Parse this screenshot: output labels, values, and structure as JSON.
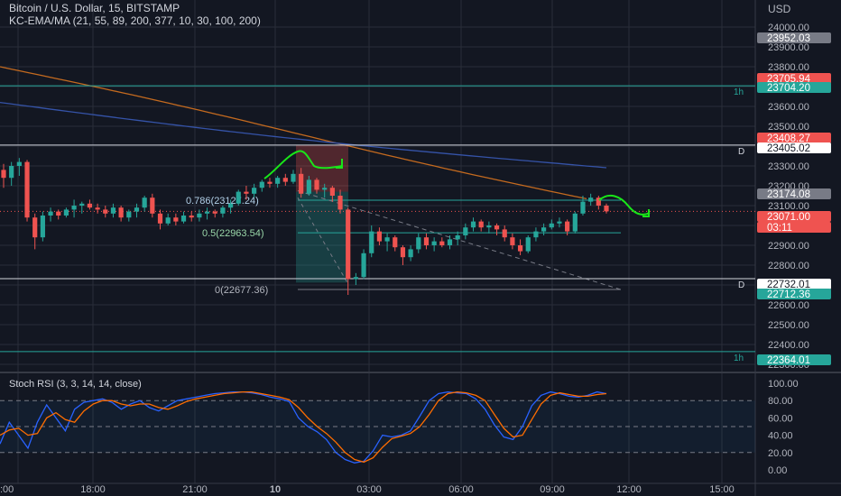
{
  "header": {
    "title": "Bitcoin / U.S. Dollar, 15, BITSTAMP",
    "indicator": "KC-EMA/MA (21, 55, 89, 200, 377, 10, 30, 100, 200)",
    "currency": "USD"
  },
  "stoch_label": "Stoch RSI (3, 3, 14, 14, close)",
  "colors": {
    "bg": "#131722",
    "up": "#26a69a",
    "down": "#ef5350",
    "grid": "#2a2e39",
    "ma_orange": "#c46a1f",
    "ma_blue": "#3553a8",
    "k": "#2962ff",
    "d": "#ff6d00",
    "hand": "#19e619"
  },
  "price_scale": {
    "labels": [
      "24000.00",
      "23900.00",
      "23800.00",
      "23700.00",
      "23600.00",
      "23500.00",
      "23400.00",
      "23300.00",
      "23200.00",
      "23100.00",
      "23000.00",
      "22900.00",
      "22800.00",
      "22700.00",
      "22600.00",
      "22500.00",
      "22400.00",
      "22300.00"
    ],
    "badges": [
      {
        "text": "23952.03",
        "bg": "#787b86",
        "fg": "#ffffff"
      },
      {
        "text": "23705.94",
        "bg": "#ef5350",
        "fg": "#ffffff"
      },
      {
        "text": "23704.20",
        "bg": "#26a69a",
        "fg": "#ffffff"
      },
      {
        "text": "23408.27",
        "bg": "#ef5350",
        "fg": "#ffffff"
      },
      {
        "text": "23405.02",
        "bg": "#ffffff",
        "fg": "#131722"
      },
      {
        "text": "23174.08",
        "bg": "#787b86",
        "fg": "#ffffff"
      },
      {
        "text": "23071.00",
        "bg": "#ef5350",
        "fg": "#ffffff"
      },
      {
        "text": "03:11",
        "bg": "#ef5350",
        "fg": "#ffffff"
      },
      {
        "text": "22732.01",
        "bg": "#ffffff",
        "fg": "#131722"
      },
      {
        "text": "22712.36",
        "bg": "#26a69a",
        "fg": "#ffffff"
      },
      {
        "text": "22364.01",
        "bg": "#26a69a",
        "fg": "#ffffff"
      }
    ]
  },
  "stoch_scale": [
    "100.00",
    "80.00",
    "60.00",
    "40.00",
    "20.00",
    "0.00"
  ],
  "time_axis": [
    ":00",
    "18:00",
    "21:00",
    "10",
    "03:00",
    "06:00",
    "09:00",
    "12:00",
    "15:00"
  ],
  "levels": [
    {
      "price": 23704.2,
      "label": "1h",
      "color": "#26a69a"
    },
    {
      "price": 23405.02,
      "label": "D",
      "color": "#d1d4dc"
    },
    {
      "price": 22732.01,
      "label": "D",
      "color": "#d1d4dc"
    },
    {
      "price": 22364.01,
      "label": "1h",
      "color": "#26a69a"
    }
  ],
  "fib_labels": [
    "0.786(23127.24)",
    "0.5(22963.54)",
    "0(22677.36)"
  ],
  "chart_data": {
    "type": "candlestick",
    "title": "Bitcoin / U.S. Dollar, 15, BITSTAMP",
    "ylim": [
      22200,
      24060
    ],
    "timeframe": "15",
    "last_price": 23071.0,
    "ohlc": [
      [
        23280,
        23310,
        23190,
        23240
      ],
      [
        23240,
        23320,
        23200,
        23300
      ],
      [
        23300,
        23340,
        23250,
        23320
      ],
      [
        23320,
        23330,
        23020,
        23040
      ],
      [
        23040,
        23060,
        22880,
        22940
      ],
      [
        22940,
        23070,
        22920,
        23050
      ],
      [
        23050,
        23090,
        23020,
        23070
      ],
      [
        23070,
        23080,
        23030,
        23050
      ],
      [
        23050,
        23090,
        23040,
        23080
      ],
      [
        23080,
        23130,
        23040,
        23100
      ],
      [
        23100,
        23120,
        23060,
        23110
      ],
      [
        23110,
        23130,
        23080,
        23090
      ],
      [
        23090,
        23110,
        23060,
        23080
      ],
      [
        23080,
        23100,
        23040,
        23060
      ],
      [
        23060,
        23110,
        23040,
        23090
      ],
      [
        23090,
        23100,
        23020,
        23040
      ],
      [
        23040,
        23080,
        23020,
        23070
      ],
      [
        23070,
        23110,
        23040,
        23090
      ],
      [
        23090,
        23150,
        23070,
        23140
      ],
      [
        23140,
        23160,
        23040,
        23060
      ],
      [
        23060,
        23080,
        22980,
        23010
      ],
      [
        23010,
        23060,
        23000,
        23040
      ],
      [
        23040,
        23060,
        23000,
        23020
      ],
      [
        23020,
        23070,
        23010,
        23050
      ],
      [
        23050,
        23070,
        23020,
        23040
      ],
      [
        23040,
        23080,
        23020,
        23060
      ],
      [
        23060,
        23090,
        23030,
        23070
      ],
      [
        23070,
        23080,
        23040,
        23060
      ],
      [
        23060,
        23100,
        23040,
        23090
      ],
      [
        23090,
        23130,
        23060,
        23110
      ],
      [
        23110,
        23180,
        23100,
        23170
      ],
      [
        23170,
        23200,
        23130,
        23160
      ],
      [
        23160,
        23210,
        23140,
        23190
      ],
      [
        23190,
        23230,
        23170,
        23220
      ],
      [
        23220,
        23240,
        23190,
        23210
      ],
      [
        23210,
        23250,
        23190,
        23240
      ],
      [
        23240,
        23260,
        23200,
        23220
      ],
      [
        23220,
        23280,
        23210,
        23260
      ],
      [
        23260,
        23290,
        23140,
        23160
      ],
      [
        23160,
        23250,
        23150,
        23230
      ],
      [
        23230,
        23240,
        23160,
        23180
      ],
      [
        23180,
        23210,
        23140,
        23190
      ],
      [
        23190,
        23200,
        23120,
        23150
      ],
      [
        23150,
        23180,
        23060,
        23080
      ],
      [
        23080,
        23090,
        22650,
        22730
      ],
      [
        22730,
        22760,
        22700,
        22740
      ],
      [
        22740,
        22880,
        22730,
        22860
      ],
      [
        22860,
        23000,
        22840,
        22970
      ],
      [
        22970,
        22990,
        22900,
        22920
      ],
      [
        22920,
        22960,
        22870,
        22940
      ],
      [
        22940,
        22950,
        22870,
        22890
      ],
      [
        22890,
        22900,
        22800,
        22840
      ],
      [
        22840,
        22900,
        22820,
        22880
      ],
      [
        22880,
        22960,
        22860,
        22940
      ],
      [
        22940,
        22960,
        22880,
        22900
      ],
      [
        22900,
        22940,
        22870,
        22920
      ],
      [
        22920,
        22940,
        22890,
        22900
      ],
      [
        22900,
        22950,
        22880,
        22930
      ],
      [
        22930,
        22970,
        22900,
        22950
      ],
      [
        22950,
        23010,
        22930,
        22990
      ],
      [
        22990,
        23040,
        22970,
        23020
      ],
      [
        23020,
        23030,
        22970,
        22990
      ],
      [
        22990,
        23020,
        22960,
        23000
      ],
      [
        23000,
        23010,
        22950,
        22980
      ],
      [
        22980,
        23000,
        22920,
        22940
      ],
      [
        22940,
        22960,
        22880,
        22900
      ],
      [
        22900,
        22930,
        22850,
        22870
      ],
      [
        22870,
        22950,
        22860,
        22940
      ],
      [
        22940,
        22990,
        22920,
        22970
      ],
      [
        22970,
        23010,
        22950,
        22990
      ],
      [
        22990,
        23030,
        22980,
        23010
      ],
      [
        23010,
        23040,
        22990,
        23020
      ],
      [
        23020,
        23030,
        22950,
        22970
      ],
      [
        22970,
        23070,
        22960,
        23060
      ],
      [
        23060,
        23150,
        23050,
        23120
      ],
      [
        23120,
        23160,
        23100,
        23140
      ],
      [
        23140,
        23150,
        23080,
        23100
      ],
      [
        23100,
        23110,
        23060,
        23071
      ]
    ],
    "stoch_k": [
      30,
      55,
      40,
      25,
      55,
      75,
      60,
      45,
      70,
      78,
      80,
      82,
      78,
      70,
      76,
      80,
      72,
      68,
      74,
      80,
      82,
      84,
      86,
      88,
      89,
      90,
      90,
      89,
      87,
      84,
      82,
      79,
      60,
      50,
      44,
      35,
      20,
      12,
      8,
      10,
      22,
      40,
      38,
      40,
      45,
      62,
      80,
      88,
      90,
      89,
      88,
      82,
      70,
      52,
      38,
      35,
      50,
      74,
      86,
      90,
      88,
      85,
      84,
      86,
      90,
      88
    ],
    "stoch_d": [
      40,
      46,
      48,
      40,
      42,
      60,
      66,
      58,
      55,
      68,
      76,
      80,
      80,
      76,
      74,
      76,
      76,
      72,
      70,
      74,
      79,
      82,
      84,
      86,
      88,
      89,
      90,
      90,
      88,
      86,
      84,
      81,
      72,
      60,
      50,
      42,
      32,
      20,
      12,
      9,
      14,
      26,
      36,
      39,
      42,
      50,
      64,
      80,
      88,
      90,
      89,
      86,
      80,
      64,
      48,
      38,
      40,
      58,
      76,
      86,
      89,
      87,
      85,
      85,
      87,
      88
    ]
  }
}
